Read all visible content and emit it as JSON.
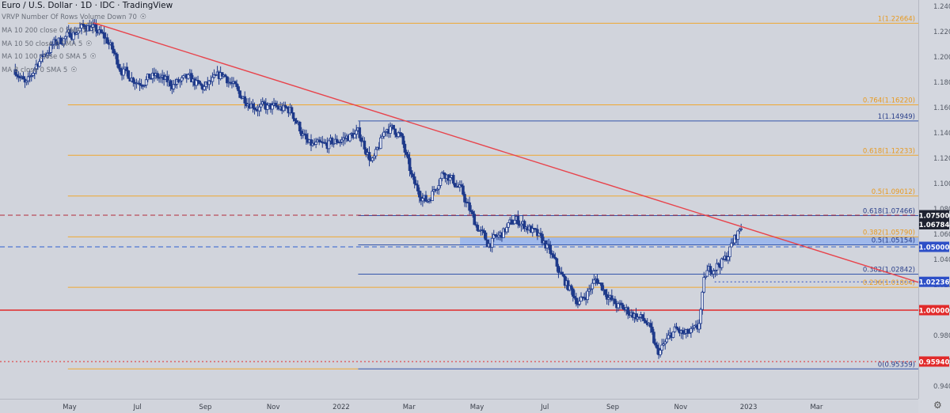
{
  "header": {
    "title": "Euro / U.S. Dollar · 1D · IDC · TradingView"
  },
  "indicators": [
    {
      "label": "VRVP Number Of Rows Volume Down 70",
      "icon": "eye-icon"
    },
    {
      "label": "MA 10 200 close 0 SMA 5",
      "icon": "eye-icon"
    },
    {
      "label": "MA 10 50 close 0 SMA 5",
      "icon": "eye-icon"
    },
    {
      "label": "MA 10 100 close 0 SMA 5",
      "icon": "eye-icon"
    },
    {
      "label": "MA 8 close 0 SMA 5",
      "icon": "eye-icon"
    }
  ],
  "settings_icon": "gear-icon",
  "colors": {
    "background": "#d1d4dc",
    "candle": "#1f3a8a",
    "trendline": "#e8434b",
    "fib_orange": "#f0a830",
    "fib_blue": "#3355aa",
    "badge_dark": "#1e2230",
    "badge_blue": "#2d4fc7",
    "badge_red": "#e12a2a"
  },
  "chart_data": {
    "type": "candlestick",
    "symbol": "EUR/USD",
    "timeframe": "1D",
    "ylim": [
      0.93,
      1.245
    ],
    "y_ticks": [
      0.94,
      0.96,
      0.98,
      1.0,
      1.02,
      1.04,
      1.06,
      1.08,
      1.1,
      1.12,
      1.14,
      1.16,
      1.18,
      1.2,
      1.22,
      1.24
    ],
    "x_ticks": [
      {
        "t": 4.5,
        "label": "May"
      },
      {
        "t": 6.5,
        "label": "Jul"
      },
      {
        "t": 8.5,
        "label": "Sep"
      },
      {
        "t": 10.5,
        "label": "Nov"
      },
      {
        "t": 12.5,
        "label": "2022"
      },
      {
        "t": 14.5,
        "label": "Mar"
      },
      {
        "t": 16.5,
        "label": "May"
      },
      {
        "t": 18.5,
        "label": "Jul"
      },
      {
        "t": 20.5,
        "label": "Sep"
      },
      {
        "t": 22.5,
        "label": "Nov"
      },
      {
        "t": 24.5,
        "label": "2023"
      },
      {
        "t": 26.5,
        "label": "Mar"
      }
    ],
    "price_path": [
      [
        2.9,
        1.19
      ],
      [
        3.2,
        1.176
      ],
      [
        3.5,
        1.195
      ],
      [
        4.0,
        1.21
      ],
      [
        4.5,
        1.218
      ],
      [
        5.0,
        1.225
      ],
      [
        5.3,
        1.22
      ],
      [
        5.6,
        1.213
      ],
      [
        6.0,
        1.19
      ],
      [
        6.5,
        1.18
      ],
      [
        7.0,
        1.185
      ],
      [
        7.5,
        1.178
      ],
      [
        8.0,
        1.183
      ],
      [
        8.4,
        1.175
      ],
      [
        9.0,
        1.187
      ],
      [
        9.5,
        1.17
      ],
      [
        10.0,
        1.16
      ],
      [
        10.5,
        1.16
      ],
      [
        11.0,
        1.158
      ],
      [
        11.5,
        1.13
      ],
      [
        12.0,
        1.13
      ],
      [
        12.5,
        1.135
      ],
      [
        13.0,
        1.14
      ],
      [
        13.4,
        1.115
      ],
      [
        13.8,
        1.145
      ],
      [
        14.2,
        1.14
      ],
      [
        14.6,
        1.1
      ],
      [
        15.0,
        1.085
      ],
      [
        15.5,
        1.11
      ],
      [
        16.0,
        1.095
      ],
      [
        16.4,
        1.07
      ],
      [
        16.8,
        1.052
      ],
      [
        17.2,
        1.06
      ],
      [
        17.6,
        1.072
      ],
      [
        18.0,
        1.065
      ],
      [
        18.5,
        1.052
      ],
      [
        19.0,
        1.025
      ],
      [
        19.5,
        1.005
      ],
      [
        20.0,
        1.025
      ],
      [
        20.5,
        1.005
      ],
      [
        21.0,
        0.998
      ],
      [
        21.5,
        0.99
      ],
      [
        21.8,
        0.965
      ],
      [
        22.3,
        0.985
      ],
      [
        22.6,
        0.98
      ],
      [
        23.0,
        0.985
      ],
      [
        23.2,
        1.03
      ],
      [
        23.5,
        1.035
      ],
      [
        23.8,
        1.04
      ],
      [
        24.0,
        1.053
      ],
      [
        24.3,
        1.068
      ]
    ],
    "trendline": {
      "from": [
        5.2,
        1.227
      ],
      "to": [
        29.5,
        1.022
      ]
    },
    "horizontal_levels": [
      {
        "price": 1.075,
        "style": "dashed",
        "color": "#b22a3a",
        "x_from": 0
      },
      {
        "price": 1.05,
        "style": "dashed",
        "color": "#2d5fd0",
        "x_from": 0
      },
      {
        "price": 1.0,
        "style": "solid",
        "color": "#e12a2a",
        "x_from": 0
      },
      {
        "price": 0.9594,
        "style": "dotted",
        "color": "#e12a2a",
        "x_from": 0
      },
      {
        "price": 1.02236,
        "style": "dotted",
        "color": "#2d4fc7",
        "x_from": 23.5
      }
    ],
    "fib_levels_orange": [
      {
        "price": 1.22664,
        "label": "1(1.22664)"
      },
      {
        "price": 1.1622,
        "label": "0.764(1.16220)"
      },
      {
        "price": 1.12233,
        "label": "0.618(1.12233)"
      },
      {
        "price": 1.09012,
        "label": "0.5(1.09012)"
      },
      {
        "price": 1.0579,
        "label": "0.382(1.05790)"
      },
      {
        "price": 1.01804,
        "label": "0.236(1.01804)"
      },
      {
        "price": 0.95359,
        "label": "",
        "x_to": 13.0
      }
    ],
    "fib_levels_blue": [
      {
        "price": 1.14949,
        "label": "1(1.14949)"
      },
      {
        "price": 1.07466,
        "label": "0.618(1.07466)"
      },
      {
        "price": 1.05154,
        "label": "0.5(1.05154)"
      },
      {
        "price": 1.02842,
        "label": "0.382(1.02842)"
      },
      {
        "price": 0.95359,
        "label": "0(0.95359)"
      }
    ],
    "zone": {
      "top": 1.0579,
      "bottom": 1.05154,
      "from": 16.0
    },
    "price_badges": [
      {
        "price": 1.075,
        "label": "1.07500",
        "style": "dark"
      },
      {
        "price": 1.06784,
        "label": "1.06784",
        "style": "dark"
      },
      {
        "price": 1.05,
        "label": "1.05000",
        "style": "blue"
      },
      {
        "price": 1.02236,
        "label": "1.02236",
        "style": "blue"
      },
      {
        "price": 1.0,
        "label": "1.00000",
        "style": "red"
      },
      {
        "price": 0.9594,
        "label": "0.95940",
        "style": "red"
      }
    ]
  }
}
